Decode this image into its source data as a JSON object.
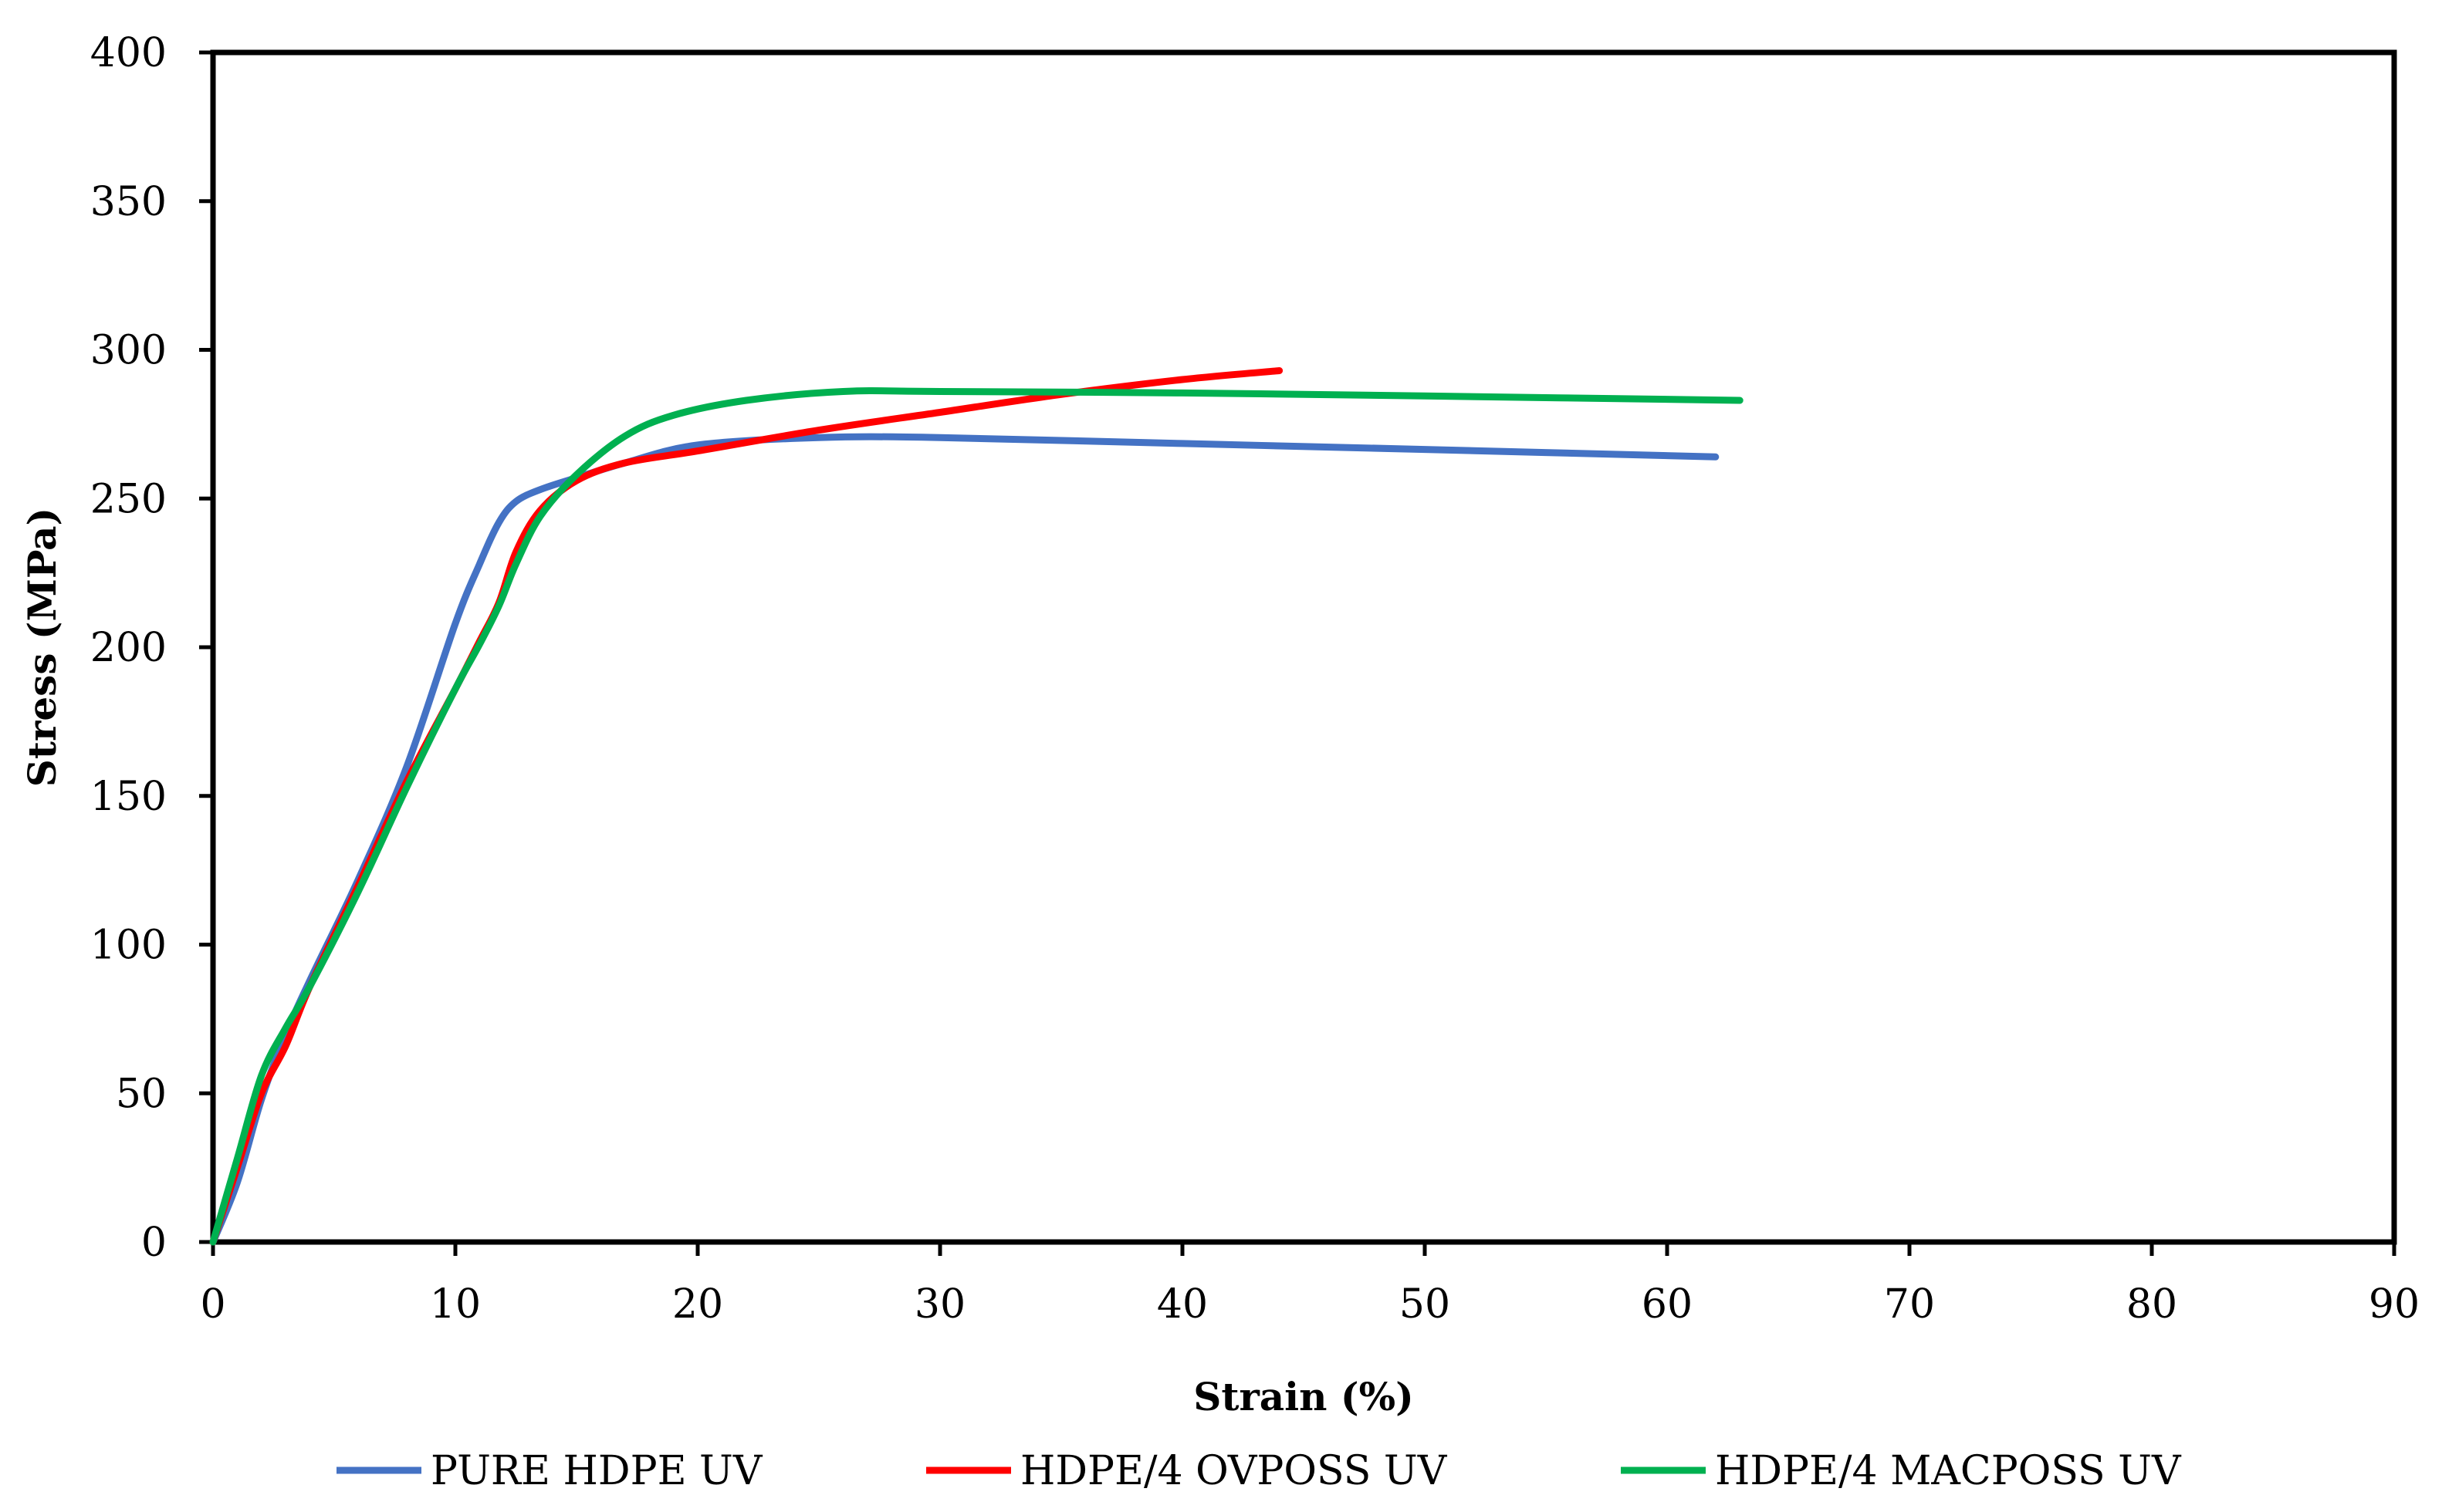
{
  "chart_data": {
    "type": "line",
    "title": "",
    "xlabel": "Strain (%)",
    "ylabel": "Stress (MPa)",
    "xlim": [
      0,
      90
    ],
    "ylim": [
      0,
      400
    ],
    "x_ticks": [
      0,
      10,
      20,
      30,
      40,
      50,
      60,
      70,
      80,
      90
    ],
    "y_ticks": [
      0,
      50,
      100,
      150,
      200,
      250,
      300,
      350,
      400
    ],
    "grid": false,
    "legend_position": "bottom",
    "series": [
      {
        "name": "PURE HDPE UV",
        "color": "#4472C4",
        "x": [
          0,
          1,
          2,
          3,
          4,
          6,
          8,
          10,
          11,
          11.8,
          12.5,
          13.5,
          15,
          17,
          20,
          25,
          30,
          40,
          50,
          62
        ],
        "y": [
          0,
          20,
          48,
          70,
          88,
          122,
          160,
          208,
          228,
          242,
          249,
          253,
          257,
          262,
          268,
          270.5,
          270.5,
          268.5,
          266.5,
          264
        ]
      },
      {
        "name": "HDPE/4 OVPOSS UV",
        "color": "#FF0000",
        "x": [
          0,
          1,
          2,
          3,
          4,
          6,
          8,
          10,
          11,
          11.8,
          12.5,
          13.5,
          15,
          17,
          20,
          25,
          30,
          35,
          40,
          44
        ],
        "y": [
          0,
          25,
          50,
          66,
          86,
          120,
          155,
          186,
          202,
          215,
          232,
          246,
          256,
          262,
          266,
          273,
          279,
          285,
          290,
          293
        ]
      },
      {
        "name": "HDPE/4 MACPOSS UV",
        "color": "#00B050",
        "x": [
          0,
          1,
          2,
          3,
          4,
          6,
          8,
          10,
          11,
          11.8,
          12.5,
          13.5,
          15,
          17,
          19,
          22,
          26,
          30,
          40,
          50,
          63
        ],
        "y": [
          0,
          28,
          56,
          72,
          86,
          118,
          153,
          186,
          201,
          214,
          228,
          244,
          258,
          271,
          278,
          283,
          286,
          286,
          285.5,
          284.5,
          283
        ]
      }
    ]
  }
}
